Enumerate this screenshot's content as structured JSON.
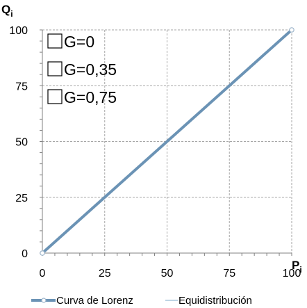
{
  "chart_data": {
    "type": "line",
    "xlabel": "P",
    "xlabel_sub": "i",
    "ylabel": "Q",
    "ylabel_sub": "i",
    "xlim": [
      0,
      100
    ],
    "ylim": [
      0,
      100
    ],
    "x_ticks": [
      0,
      25,
      50,
      75,
      100
    ],
    "y_ticks": [
      0,
      25,
      50,
      75,
      100
    ],
    "grid": true,
    "legend_position": "bottom",
    "series": [
      {
        "name": "Curva de Lorenz",
        "color": "#6b93b5",
        "x": [
          0,
          100
        ],
        "y": [
          0,
          100
        ]
      },
      {
        "name": "Equidistribución",
        "color": "#a8c6dc",
        "x": [
          0,
          100
        ],
        "y": [
          0,
          100
        ]
      }
    ],
    "options": [
      {
        "label": "G=0",
        "checked": false
      },
      {
        "label": "G=0,35",
        "checked": false
      },
      {
        "label": "G=0,75",
        "checked": false
      }
    ]
  }
}
